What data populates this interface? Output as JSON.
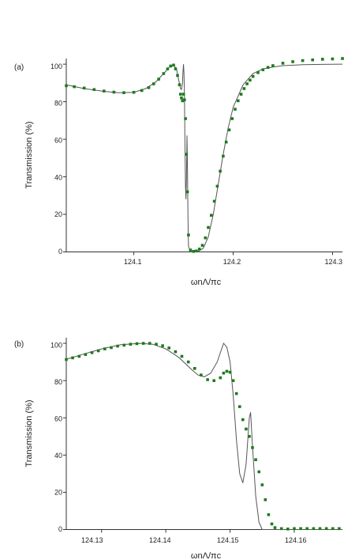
{
  "chart_data": [
    {
      "type": "line",
      "panel_label": "(a)",
      "xlabel": "ωnΛ/πc",
      "ylabel": "Transmission (%)",
      "xlim": [
        124.032,
        124.31
      ],
      "ylim": [
        0,
        103
      ],
      "x_ticks": [
        124.1,
        124.2,
        124.3
      ],
      "x_tick_labels": [
        "124.1",
        "124.2",
        "124.3"
      ],
      "y_ticks": [
        0,
        20,
        40,
        60,
        80,
        100
      ],
      "y_tick_labels": [
        "0",
        "20",
        "40",
        "60",
        "80",
        "100"
      ],
      "grid": false,
      "series": [
        {
          "style": "line",
          "color": "#555555",
          "x": [
            124.032,
            124.05,
            124.07,
            124.085,
            124.1,
            124.112,
            124.122,
            124.13,
            124.136,
            124.14,
            124.143,
            124.145,
            124.147,
            124.148,
            124.149,
            124.1495,
            124.15,
            124.1505,
            124.151,
            124.1515,
            124.152,
            124.1525,
            124.153,
            124.1535,
            124.154,
            124.1545,
            124.155,
            124.157,
            124.16,
            124.165,
            124.17,
            124.175,
            124.18,
            124.185,
            124.19,
            124.195,
            124.2,
            124.21,
            124.22,
            124.23,
            124.24,
            124.25,
            124.27,
            124.29,
            124.31
          ],
          "y": [
            89,
            87,
            85.5,
            84.8,
            85,
            87,
            90.5,
            95,
            98.5,
            99.5,
            97.5,
            92,
            87,
            86.5,
            90,
            96,
            100,
            95,
            83,
            58,
            35,
            28,
            40,
            62,
            45,
            20,
            3,
            0,
            0,
            0.3,
            2,
            8,
            20,
            36,
            52,
            66,
            77,
            89,
            95,
            97.5,
            98.5,
            99.2,
            99.7,
            99.9,
            100
          ]
        },
        {
          "style": "markers",
          "color": "#1e7a1e",
          "x": [
            124.032,
            124.04,
            124.05,
            124.06,
            124.07,
            124.08,
            124.09,
            124.1,
            124.108,
            124.115,
            124.12,
            124.125,
            124.13,
            124.134,
            124.137,
            124.14,
            124.142,
            124.144,
            124.146,
            124.147,
            124.148,
            124.149,
            124.15,
            124.151,
            124.152,
            124.153,
            124.154,
            124.155,
            124.157,
            124.16,
            124.163,
            124.166,
            124.169,
            124.172,
            124.175,
            124.178,
            124.181,
            124.184,
            124.187,
            124.19,
            124.193,
            124.196,
            124.199,
            124.202,
            124.205,
            124.208,
            124.211,
            124.214,
            124.217,
            124.22,
            124.225,
            124.23,
            124.235,
            124.24,
            124.25,
            124.26,
            124.27,
            124.28,
            124.29,
            124.3,
            124.31
          ],
          "y": [
            88.5,
            88,
            87.3,
            86.5,
            85.7,
            85.1,
            84.8,
            85,
            86,
            87.5,
            89.5,
            92,
            95,
            97.5,
            99,
            99.5,
            97.5,
            94,
            89,
            84,
            82,
            80.5,
            84,
            81,
            71,
            52,
            32,
            9,
            1,
            0.3,
            0.5,
            1.5,
            3.5,
            7.5,
            13,
            19.5,
            27,
            35,
            43,
            51,
            58.5,
            65,
            71,
            76,
            80.5,
            84,
            87,
            89.5,
            91.5,
            93.5,
            95.5,
            97,
            98.3,
            99.2,
            100.5,
            101.3,
            101.9,
            102.3,
            102.6,
            102.8,
            103
          ]
        }
      ]
    },
    {
      "type": "line",
      "panel_label": "(b)",
      "xlabel": "ωnΛ/πc",
      "ylabel": "Transmission (%)",
      "xlim": [
        124.1245,
        124.1675
      ],
      "ylim": [
        0,
        103
      ],
      "x_ticks": [
        124.13,
        124.14,
        124.15,
        124.16
      ],
      "x_tick_labels": [
        "124.13",
        "124.14",
        "124.15",
        "124.16"
      ],
      "y_ticks": [
        0,
        20,
        40,
        60,
        80,
        100
      ],
      "y_tick_labels": [
        "0",
        "20",
        "40",
        "60",
        "80",
        "100"
      ],
      "grid": false,
      "series": [
        {
          "style": "line",
          "color": "#555555",
          "x": [
            124.1245,
            124.127,
            124.13,
            124.133,
            124.136,
            124.138,
            124.14,
            124.142,
            124.144,
            124.145,
            124.146,
            124.147,
            124.148,
            124.1485,
            124.149,
            124.1495,
            124.15,
            124.1505,
            124.151,
            124.1515,
            124.152,
            124.1525,
            124.153,
            124.1532,
            124.1535,
            124.154,
            124.1545,
            124.155,
            124.1675
          ],
          "y": [
            91.5,
            94,
            97,
            99.3,
            100,
            99.5,
            97,
            92.5,
            86,
            83,
            82,
            84,
            90,
            95,
            100,
            98,
            90,
            72,
            48,
            30,
            25,
            35,
            60,
            63,
            45,
            18,
            4,
            0,
            0
          ]
        },
        {
          "style": "markers",
          "color": "#1e7a1e",
          "x": [
            124.1245,
            124.1255,
            124.1265,
            124.1275,
            124.1285,
            124.1295,
            124.1305,
            124.1315,
            124.1325,
            124.1335,
            124.1345,
            124.1355,
            124.1365,
            124.1375,
            124.1385,
            124.1395,
            124.1405,
            124.1415,
            124.1425,
            124.1435,
            124.1445,
            124.1455,
            124.1465,
            124.1475,
            124.1485,
            124.149,
            124.1495,
            124.15,
            124.1505,
            124.151,
            124.1515,
            124.152,
            124.1525,
            124.153,
            124.1535,
            124.154,
            124.1545,
            124.155,
            124.1555,
            124.156,
            124.1565,
            124.157,
            124.158,
            124.159,
            124.16,
            124.161,
            124.162,
            124.163,
            124.164,
            124.165,
            124.166,
            124.167
          ],
          "y": [
            91.3,
            92.2,
            93,
            94,
            95,
            96,
            97,
            97.7,
            98.5,
            99,
            99.5,
            99.8,
            100,
            100,
            99.5,
            98.7,
            97.5,
            95.5,
            93,
            90,
            86.5,
            83,
            80.5,
            80,
            81.5,
            84,
            85,
            84.5,
            80,
            73,
            66,
            59,
            54,
            50,
            44,
            37.5,
            31,
            24,
            16,
            8,
            3,
            1,
            0.5,
            0.3,
            0.5,
            0.5,
            0.5,
            0.5,
            0.5,
            0.5,
            0.5,
            0.5
          ]
        }
      ]
    }
  ]
}
